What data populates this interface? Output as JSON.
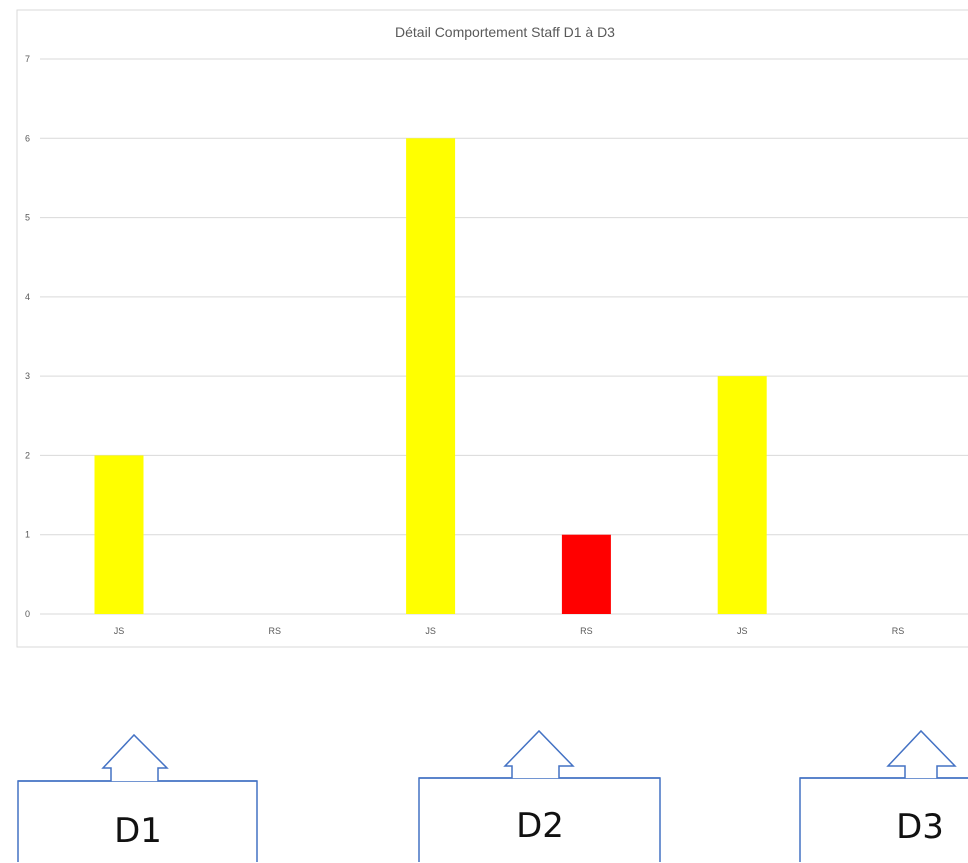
{
  "chart_data": {
    "type": "bar",
    "title": "Détail Comportement Staff D1 à D3",
    "categories": [
      "JS",
      "RS",
      "JS",
      "RS",
      "JS",
      "RS"
    ],
    "values": [
      2,
      0,
      6,
      1,
      3,
      0
    ],
    "bar_colors": [
      "#FFFF00",
      "#FFFF00",
      "#FFFF00",
      "#FF0000",
      "#FFFF00",
      "#FFFF00"
    ],
    "y_ticks": [
      0,
      1,
      2,
      3,
      4,
      5,
      6,
      7
    ],
    "ylim": [
      0,
      7
    ],
    "grid": true,
    "legend": "none"
  },
  "callouts": [
    {
      "label": "D1"
    },
    {
      "label": "D2"
    },
    {
      "label": "D3"
    }
  ],
  "colors": {
    "gridline": "#d9d9d9",
    "text": "#595959",
    "callout_stroke": "#4472C4",
    "chart_border": "#d9d9d9"
  }
}
